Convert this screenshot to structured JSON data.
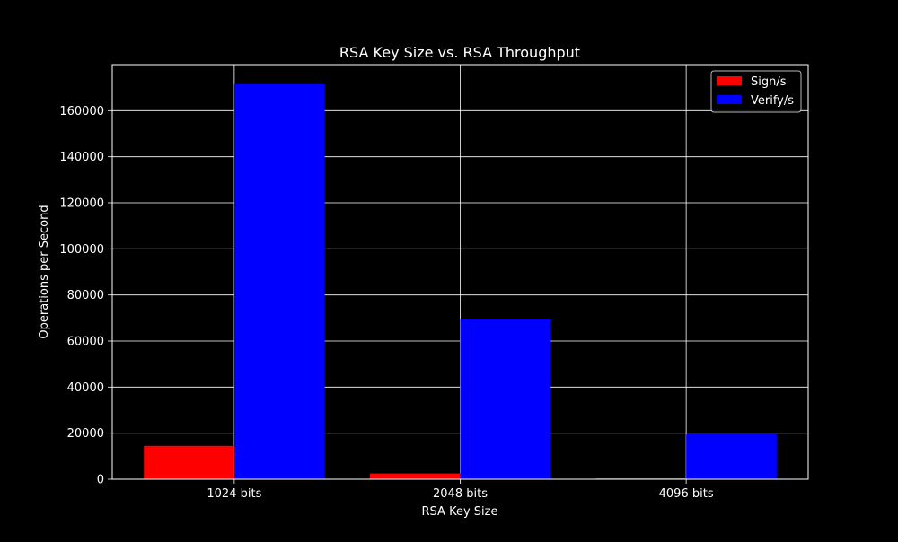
{
  "chart_data": {
    "type": "bar",
    "title": "RSA Key Size vs. RSA Throughput",
    "xlabel": "RSA Key Size",
    "ylabel": "Operations per Second",
    "categories": [
      "1024 bits",
      "2048 bits",
      "4096 bits"
    ],
    "series": [
      {
        "name": "Sign/s",
        "color": "#ff0000",
        "values": [
          14500,
          2500,
          400
        ]
      },
      {
        "name": "Verify/s",
        "color": "#0000ff",
        "values": [
          171500,
          69500,
          19500
        ]
      }
    ],
    "ylim": [
      0,
      180000
    ],
    "yticks": [
      0,
      20000,
      40000,
      60000,
      80000,
      100000,
      120000,
      140000,
      160000
    ],
    "grid": true,
    "legend_position": "top-right",
    "background": "#000000",
    "foreground": "#ffffff"
  }
}
